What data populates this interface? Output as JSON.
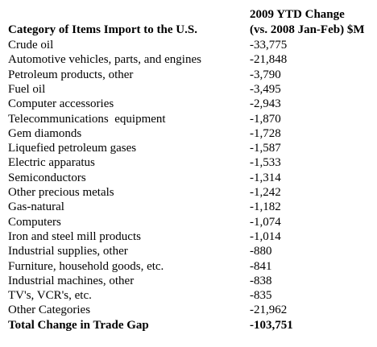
{
  "table": {
    "header": {
      "category": "Category of Items Import to the U.S.",
      "change": [
        "2009 YTD Change",
        "(vs. 2008 Jan-Feb) $M"
      ]
    },
    "rows": [
      [
        "Crude oil",
        "-33,775"
      ],
      [
        "Automotive vehicles, parts, and engines",
        "-21,848"
      ],
      [
        "Petroleum products, other",
        "-3,790"
      ],
      [
        "Fuel oil",
        "-3,495"
      ],
      [
        "Computer accessories",
        "-2,943"
      ],
      [
        "Telecommunications  equipment",
        "-1,870"
      ],
      [
        "Gem diamonds",
        "-1,728"
      ],
      [
        "Liquefied petroleum gases",
        "-1,587"
      ],
      [
        "Electric apparatus",
        "-1,533"
      ],
      [
        "Semiconductors",
        "-1,314"
      ],
      [
        "Other precious metals",
        "-1,242"
      ],
      [
        "Gas-natural",
        "-1,182"
      ],
      [
        "Computers",
        "-1,074"
      ],
      [
        "Iron and steel mill products",
        "-1,014"
      ],
      [
        "Industrial supplies, other",
        "-880"
      ],
      [
        "Furniture, household goods, etc.",
        "-841"
      ],
      [
        "Industrial machines, other",
        "-838"
      ],
      [
        "TV's, VCR's, etc.",
        "-835"
      ],
      [
        "Other Categories",
        "-21,962"
      ]
    ],
    "total": [
      "Total Change in Trade Gap",
      "-103,751"
    ]
  }
}
